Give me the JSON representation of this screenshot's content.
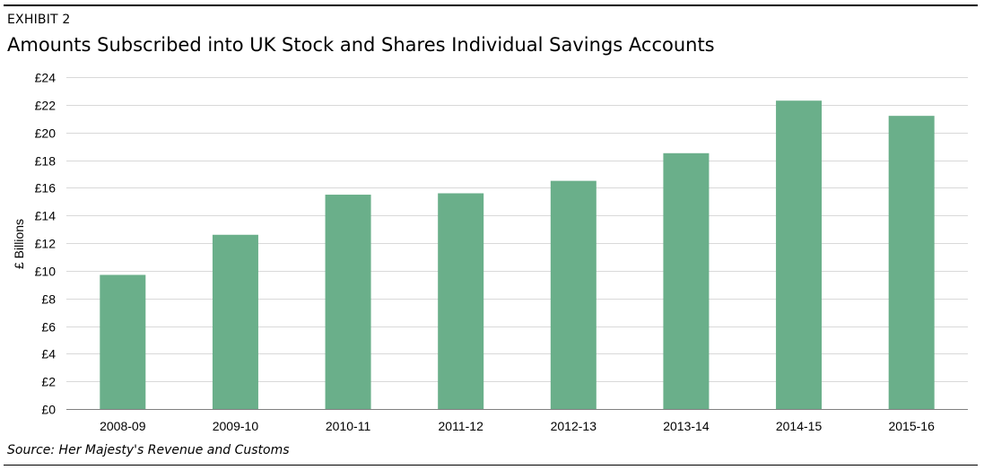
{
  "header": {
    "exhibit_label": "EXHIBIT 2",
    "title": "Amounts Subscribed into UK Stock and Shares Individual Savings Accounts"
  },
  "footer": {
    "source": "Source: Her Majesty's Revenue and Customs"
  },
  "chart_data": {
    "type": "bar",
    "title": "Amounts Subscribed into UK Stock and Shares Individual Savings Accounts",
    "xlabel": "",
    "ylabel": "£ Billions",
    "categories": [
      "2008-09",
      "2009-10",
      "2010-11",
      "2011-12",
      "2012-13",
      "2013-14",
      "2014-15",
      "2015-16"
    ],
    "values": [
      9.7,
      12.6,
      15.5,
      15.6,
      16.5,
      18.5,
      22.3,
      21.2
    ],
    "ylim": [
      0,
      24
    ],
    "yticks": [
      0,
      2,
      4,
      6,
      8,
      10,
      12,
      14,
      16,
      18,
      20,
      22,
      24
    ],
    "ytick_labels": [
      "£0",
      "£2",
      "£4",
      "£6",
      "£8",
      "£10",
      "£12",
      "£14",
      "£16",
      "£18",
      "£20",
      "£22",
      "£24"
    ],
    "grid": true,
    "legend": "none",
    "bar_color": "#6aaf8a",
    "grid_color": "#d9d9d9",
    "axis_color": "#808080"
  }
}
